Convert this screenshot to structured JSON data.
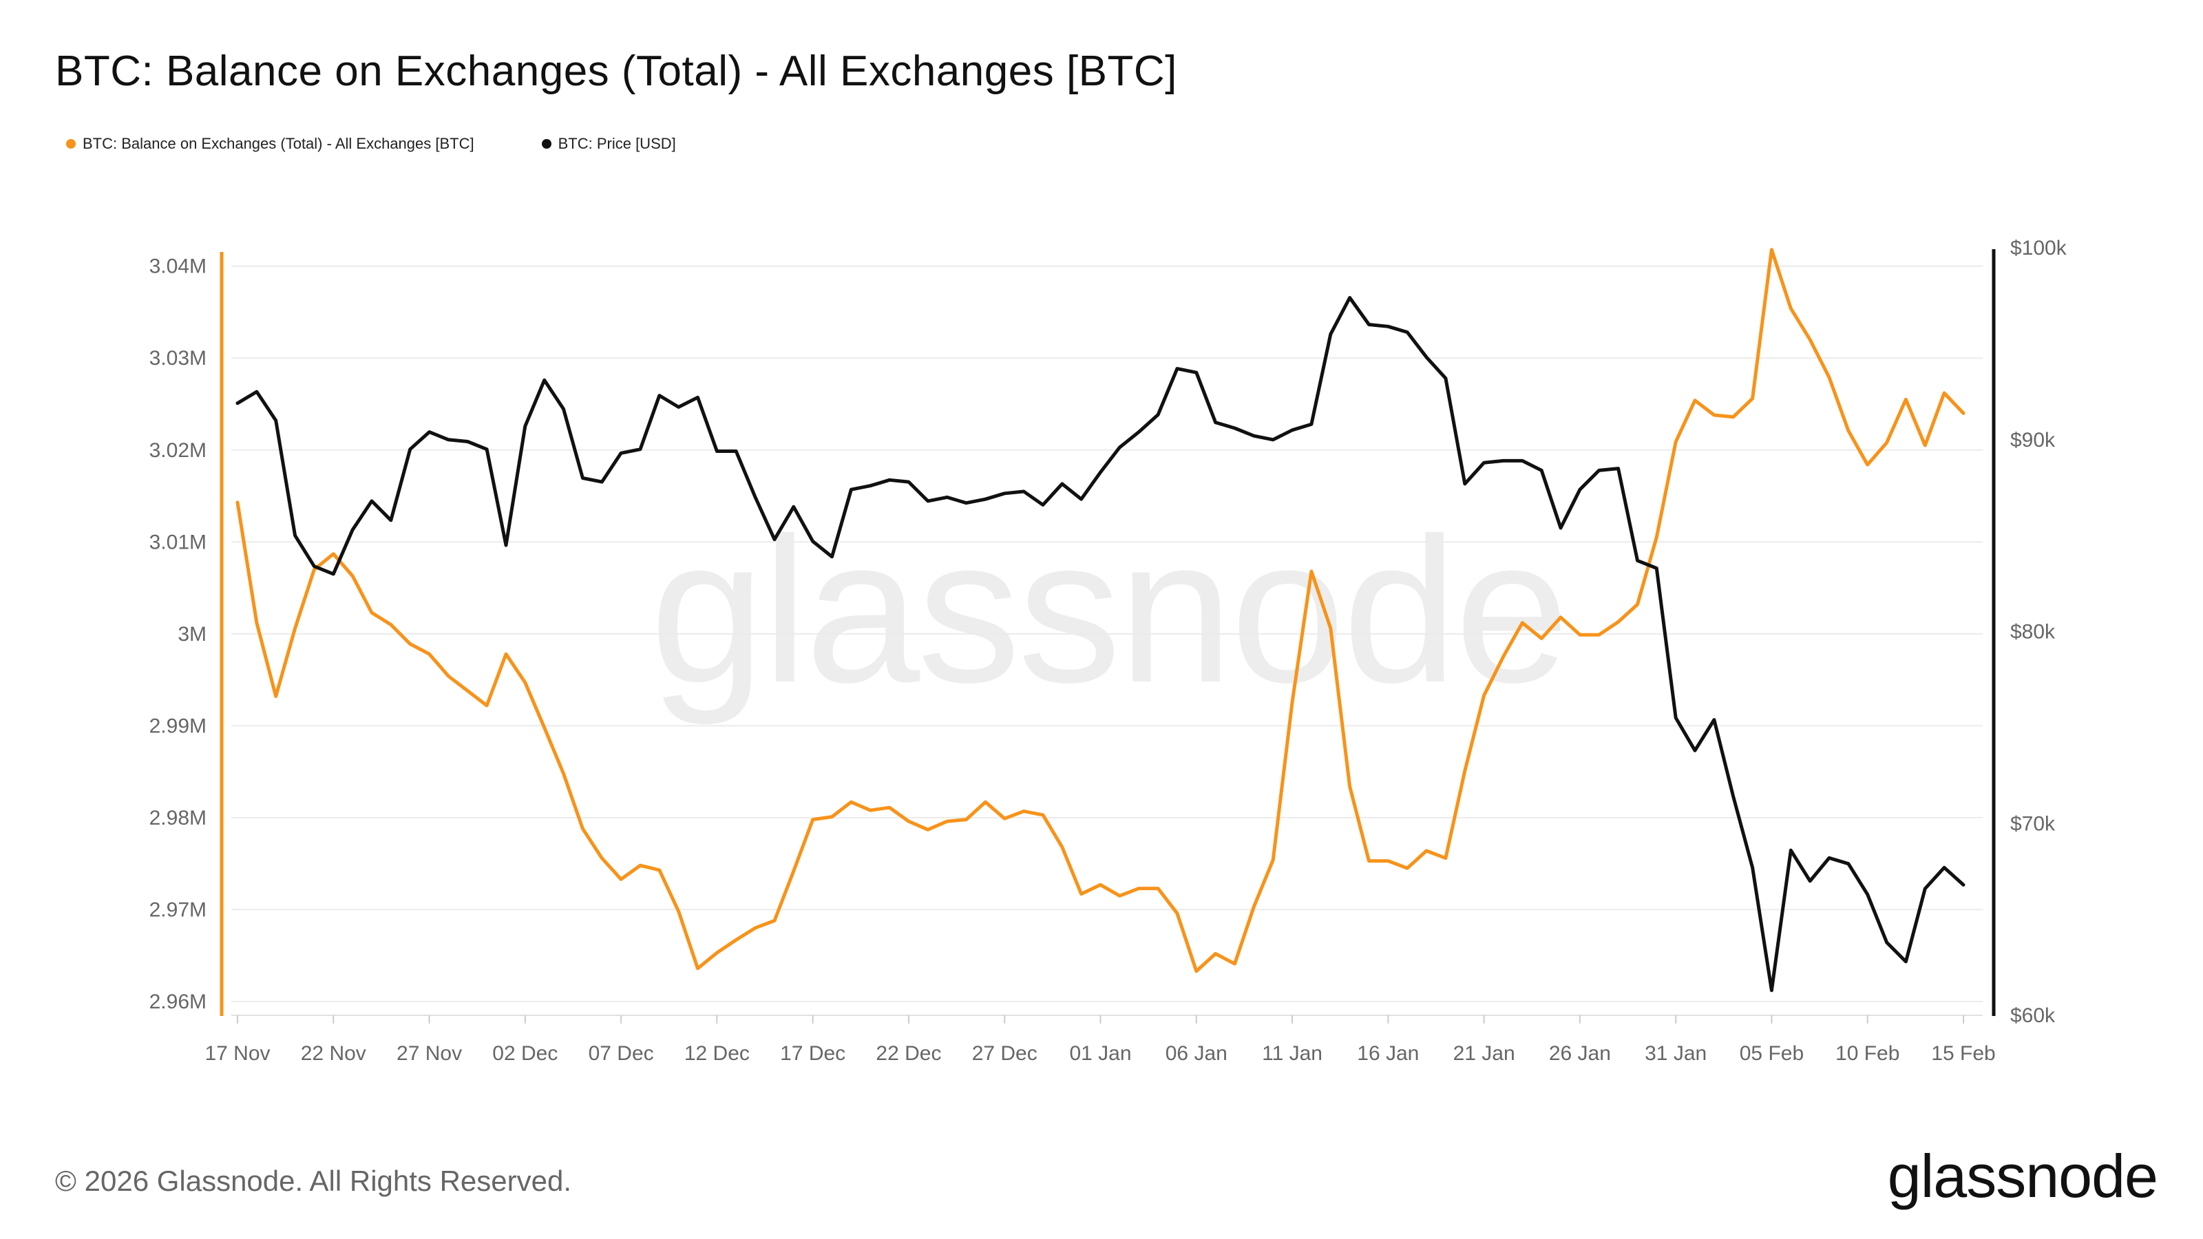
{
  "title": "BTC: Balance on Exchanges (Total) - All Exchanges [BTC]",
  "footer": "© 2026 Glassnode. All Rights Reserved.",
  "brand": "glassnode",
  "watermark": "glassnode",
  "colors": {
    "balance": "#F7931A",
    "price": "#111111",
    "grid": "#EBEBEB"
  },
  "chart_data": {
    "type": "line",
    "title": "BTC: Balance on Exchanges (Total) - All Exchanges [BTC]",
    "legend_position": "top-left",
    "grid": true,
    "x_tick_labels": [
      "17 Nov",
      "22 Nov",
      "27 Nov",
      "02 Dec",
      "07 Dec",
      "12 Dec",
      "17 Dec",
      "22 Dec",
      "27 Dec",
      "01 Jan",
      "06 Jan",
      "11 Jan",
      "16 Jan",
      "21 Jan",
      "26 Jan",
      "31 Jan",
      "05 Feb",
      "10 Feb",
      "15 Feb"
    ],
    "x_range": [
      "2025-11-17",
      "2026-02-15"
    ],
    "y_left": {
      "ticks": [
        "2.96M",
        "2.97M",
        "2.98M",
        "2.99M",
        "3M",
        "3.01M",
        "3.02M",
        "3.03M",
        "3.04M"
      ],
      "range": [
        2958500,
        3042000
      ]
    },
    "y_right": {
      "ticks": [
        "$60k",
        "$70k",
        "$80k",
        "$90k",
        "$100k"
      ],
      "tick_values": [
        60000,
        70000,
        80000,
        90000,
        100000
      ],
      "range": [
        60000,
        100000
      ]
    },
    "series": [
      {
        "name": "BTC: Balance on Exchanges (Total) - All Exchanges [BTC]",
        "axis": "left",
        "values": [
          3014300,
          3001200,
          2993200,
          3000600,
          3007000,
          3008700,
          3006300,
          3002300,
          3001000,
          2998900,
          2997800,
          2995400,
          2993800,
          2992200,
          2997800,
          2994700,
          2989800,
          2984800,
          2978800,
          2975600,
          2973300,
          2974800,
          2974300,
          2969800,
          2963600,
          2965300,
          2966700,
          2968000,
          2968800,
          2974200,
          2979800,
          2980100,
          2981700,
          2980800,
          2981100,
          2979600,
          2978700,
          2979600,
          2979800,
          2981700,
          2979900,
          2980700,
          2980300,
          2976800,
          2971700,
          2972700,
          2971500,
          2972300,
          2972300,
          2969600,
          2963300,
          2965200,
          2964100,
          2970300,
          2975400,
          2992600,
          3006800,
          3000600,
          2983400,
          2975300,
          2975300,
          2974500,
          2976400,
          2975600,
          2985100,
          2993300,
          2997500,
          3001200,
          2999500,
          3001800,
          2999900,
          2999900,
          3001300,
          3003200,
          3010500,
          3020900,
          3025400,
          3023800,
          3023600,
          3025600,
          3041800,
          3035400,
          3032000,
          3027900,
          3022100,
          3018400,
          3020800,
          3025500,
          3020500,
          3026200,
          3024000
        ]
      },
      {
        "name": "BTC: Price [USD]",
        "axis": "right",
        "values": [
          91900,
          92500,
          91000,
          85000,
          83400,
          83000,
          85300,
          86800,
          85800,
          89500,
          90400,
          90000,
          89900,
          89500,
          84500,
          90700,
          93100,
          91600,
          88000,
          87800,
          89300,
          89500,
          92300,
          91700,
          92200,
          89400,
          89400,
          87000,
          84800,
          86500,
          84700,
          83900,
          87400,
          87600,
          87900,
          87800,
          86800,
          87000,
          86700,
          86900,
          87200,
          87300,
          86600,
          87700,
          86900,
          88300,
          89600,
          90400,
          91300,
          93700,
          93500,
          90900,
          90600,
          90200,
          90000,
          90500,
          90800,
          95500,
          97400,
          96000,
          95900,
          95600,
          94300,
          93200,
          87700,
          88800,
          88900,
          88900,
          88400,
          85400,
          87400,
          88400,
          88500,
          83700,
          83300,
          75500,
          73800,
          75400,
          71400,
          67700,
          61300,
          68600,
          67000,
          68200,
          67900,
          66300,
          63800,
          62800,
          66600,
          67700,
          66800
        ]
      }
    ]
  }
}
